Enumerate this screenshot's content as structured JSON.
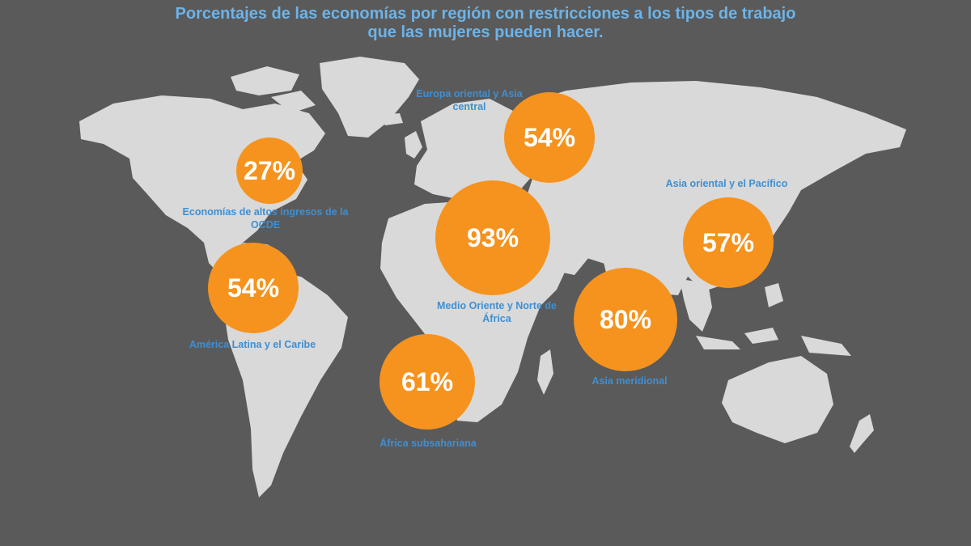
{
  "title": {
    "line1": "Porcentajes de las economías por región con restricciones a los tipos de trabajo",
    "line2": "que las mujeres pueden hacer."
  },
  "colors": {
    "background": "#5a5a5a",
    "land": "#d9d9d9",
    "bubble": "#f5931e",
    "title": "#6db3e8",
    "label": "#3f8fd2"
  },
  "regions": [
    {
      "id": "oecd",
      "value": 27,
      "value_label": "27%",
      "label": "Economías de altos ingresos de la OCDE"
    },
    {
      "id": "latam",
      "value": 54,
      "value_label": "54%",
      "label": "América Latina y el Caribe"
    },
    {
      "id": "europe-central-asia",
      "value": 54,
      "value_label": "54%",
      "label": "Europa oriental y Asia central"
    },
    {
      "id": "mena",
      "value": 93,
      "value_label": "93%",
      "label": "Medio Oriente y Norte de África"
    },
    {
      "id": "east-asia-pacific",
      "value": 57,
      "value_label": "57%",
      "label": "Asia oriental y el Pacífico"
    },
    {
      "id": "south-asia",
      "value": 80,
      "value_label": "80%",
      "label": "Asia meridional"
    },
    {
      "id": "ssa",
      "value": 61,
      "value_label": "61%",
      "label": "África subsahariana"
    }
  ]
}
